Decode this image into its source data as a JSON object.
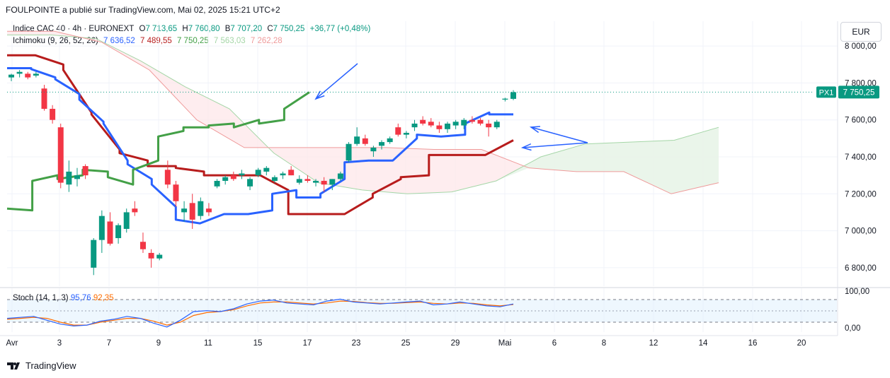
{
  "header": {
    "publisher_line": "FOULPOINTE a publié sur TradingView.com, Mai 02, 2025 15:21 UTC+2"
  },
  "legend": {
    "symbol": "Indice CAC 40 · 4h · EURONEXT",
    "o_label": "O",
    "o_value": "7 713,65",
    "h_label": "H",
    "h_value": "7 760,80",
    "b_label": "B",
    "b_value": "7 707,20",
    "c_label": "C",
    "c_value": "7 750,25",
    "change": "+36,77 (+0,48%)",
    "ichimoku_label": "Ichimoku (9, 26, 52, 26)",
    "ichimoku_values": [
      "7 636,52",
      "7 489,55",
      "7 750,25",
      "7 563,03",
      "7 262,28"
    ]
  },
  "stoch": {
    "label": "Stoch (14, 1, 3)",
    "k": "95,76",
    "d": "92,35"
  },
  "currency_button": "EUR",
  "price_tag": {
    "label": "PX1",
    "value": "7 750,25"
  },
  "price_axis": [
    "8 000,00",
    "7 800,00",
    "7 600,00",
    "7 400,00",
    "7 200,00",
    "7 000,00",
    "6 800,00"
  ],
  "stoch_axis": [
    "100,00",
    "0,00"
  ],
  "time_axis": [
    "Avr",
    "3",
    "7",
    "9",
    "11",
    "15",
    "17",
    "23",
    "25",
    "29",
    "Mai",
    "6",
    "8",
    "12",
    "14",
    "16",
    "20"
  ],
  "brand": "TradingView",
  "colors": {
    "up": "#089981",
    "down": "#f23645",
    "conversion": "#2962ff",
    "base": "#b71c1c",
    "lagging": "#43a047",
    "span_a": "#a5d6a7",
    "span_b": "#ef9a9a",
    "stoch_k": "#2962ff",
    "stoch_d": "#ff6d00"
  },
  "chart_data": {
    "type": "candlestick",
    "title": "Indice CAC 40 · 4h · EURONEXT",
    "ylim": [
      6700,
      8100
    ],
    "candles": [
      {
        "o": 7830,
        "h": 7850,
        "l": 7810,
        "c": 7845
      },
      {
        "o": 7850,
        "h": 7870,
        "l": 7830,
        "c": 7860
      },
      {
        "o": 7850,
        "h": 7860,
        "l": 7820,
        "c": 7830
      },
      {
        "o": 7840,
        "h": 7860,
        "l": 7830,
        "c": 7850
      },
      {
        "o": 7770,
        "h": 7790,
        "l": 7650,
        "c": 7660
      },
      {
        "o": 7660,
        "h": 7680,
        "l": 7580,
        "c": 7600
      },
      {
        "o": 7560,
        "h": 7580,
        "l": 7230,
        "c": 7260
      },
      {
        "o": 7250,
        "h": 7380,
        "l": 7210,
        "c": 7320
      },
      {
        "o": 7280,
        "h": 7340,
        "l": 7240,
        "c": 7300
      },
      {
        "o": 7350,
        "h": 7360,
        "l": 7280,
        "c": 7300
      },
      {
        "o": 6800,
        "h": 6960,
        "l": 6760,
        "c": 6950
      },
      {
        "o": 6950,
        "h": 7110,
        "l": 6880,
        "c": 7080
      },
      {
        "o": 7050,
        "h": 7100,
        "l": 6920,
        "c": 6930
      },
      {
        "o": 6960,
        "h": 7040,
        "l": 6930,
        "c": 7030
      },
      {
        "o": 7010,
        "h": 7120,
        "l": 6990,
        "c": 7100
      },
      {
        "o": 7120,
        "h": 7160,
        "l": 7080,
        "c": 7100
      },
      {
        "o": 6940,
        "h": 6990,
        "l": 6880,
        "c": 6900
      },
      {
        "o": 6880,
        "h": 6900,
        "l": 6800,
        "c": 6850
      },
      {
        "o": 6850,
        "h": 6880,
        "l": 6840,
        "c": 6870
      },
      {
        "o": 7330,
        "h": 7380,
        "l": 7230,
        "c": 7250
      },
      {
        "o": 7250,
        "h": 7270,
        "l": 7130,
        "c": 7160
      },
      {
        "o": 7100,
        "h": 7160,
        "l": 7050,
        "c": 7120
      },
      {
        "o": 7150,
        "h": 7200,
        "l": 7010,
        "c": 7060
      },
      {
        "o": 7080,
        "h": 7180,
        "l": 7060,
        "c": 7160
      },
      {
        "o": 7120,
        "h": 7150,
        "l": 7080,
        "c": 7100
      },
      {
        "o": 7240,
        "h": 7280,
        "l": 7230,
        "c": 7270
      },
      {
        "o": 7270,
        "h": 7300,
        "l": 7250,
        "c": 7290
      },
      {
        "o": 7300,
        "h": 7320,
        "l": 7270,
        "c": 7280
      },
      {
        "o": 7300,
        "h": 7330,
        "l": 7280,
        "c": 7310
      },
      {
        "o": 7240,
        "h": 7290,
        "l": 7220,
        "c": 7280
      },
      {
        "o": 7300,
        "h": 7340,
        "l": 7290,
        "c": 7330
      },
      {
        "o": 7320,
        "h": 7350,
        "l": 7300,
        "c": 7340
      },
      {
        "o": 7270,
        "h": 7300,
        "l": 7260,
        "c": 7290
      },
      {
        "o": 7300,
        "h": 7320,
        "l": 7280,
        "c": 7310
      },
      {
        "o": 7330,
        "h": 7350,
        "l": 7300,
        "c": 7300
      },
      {
        "o": 7260,
        "h": 7300,
        "l": 7250,
        "c": 7280
      },
      {
        "o": 7280,
        "h": 7300,
        "l": 7260,
        "c": 7270
      },
      {
        "o": 7260,
        "h": 7280,
        "l": 7240,
        "c": 7270
      },
      {
        "o": 7270,
        "h": 7290,
        "l": 7210,
        "c": 7250
      },
      {
        "o": 7250,
        "h": 7280,
        "l": 7220,
        "c": 7280
      },
      {
        "o": 7280,
        "h": 7320,
        "l": 7270,
        "c": 7310
      },
      {
        "o": 7380,
        "h": 7480,
        "l": 7370,
        "c": 7470
      },
      {
        "o": 7470,
        "h": 7560,
        "l": 7460,
        "c": 7510
      },
      {
        "o": 7500,
        "h": 7520,
        "l": 7460,
        "c": 7470
      },
      {
        "o": 7430,
        "h": 7460,
        "l": 7400,
        "c": 7450
      },
      {
        "o": 7460,
        "h": 7490,
        "l": 7440,
        "c": 7480
      },
      {
        "o": 7480,
        "h": 7510,
        "l": 7470,
        "c": 7500
      },
      {
        "o": 7560,
        "h": 7580,
        "l": 7510,
        "c": 7520
      },
      {
        "o": 7520,
        "h": 7540,
        "l": 7500,
        "c": 7530
      },
      {
        "o": 7560,
        "h": 7600,
        "l": 7540,
        "c": 7580
      },
      {
        "o": 7600,
        "h": 7620,
        "l": 7570,
        "c": 7580
      },
      {
        "o": 7590,
        "h": 7610,
        "l": 7560,
        "c": 7570
      },
      {
        "o": 7570,
        "h": 7590,
        "l": 7530,
        "c": 7550
      },
      {
        "o": 7550,
        "h": 7590,
        "l": 7530,
        "c": 7580
      },
      {
        "o": 7570,
        "h": 7600,
        "l": 7550,
        "c": 7590
      },
      {
        "o": 7570,
        "h": 7610,
        "l": 7550,
        "c": 7600
      },
      {
        "o": 7600,
        "h": 7620,
        "l": 7580,
        "c": 7590
      },
      {
        "o": 7600,
        "h": 7610,
        "l": 7570,
        "c": 7580
      },
      {
        "o": 7580,
        "h": 7600,
        "l": 7510,
        "c": 7560
      },
      {
        "o": 7560,
        "h": 7600,
        "l": 7550,
        "c": 7590
      },
      {
        "o": 7710,
        "h": 7720,
        "l": 7700,
        "c": 7715
      },
      {
        "o": 7714,
        "h": 7761,
        "l": 7707,
        "c": 7750
      }
    ],
    "ichimoku": {
      "conversion": [
        [
          7880,
          7880
        ],
        [
          7875,
          7830
        ],
        [
          7820,
          7740
        ],
        [
          7710,
          7590
        ],
        [
          7580,
          7380
        ],
        [
          7360,
          7280
        ],
        [
          7250,
          7130
        ],
        [
          7060,
          7040
        ],
        [
          7040,
          7090
        ],
        [
          7090,
          7090
        ],
        [
          7090,
          7110
        ],
        [
          7200,
          7220
        ],
        [
          7180,
          7180
        ],
        [
          7200,
          7280
        ],
        [
          7370,
          7380
        ],
        [
          7380,
          7380
        ],
        [
          7380,
          7500
        ],
        [
          7520,
          7510
        ],
        [
          7510,
          7520
        ],
        [
          7580,
          7640
        ],
        [
          7630,
          7630
        ]
      ],
      "base": [
        [
          7950,
          7950
        ],
        [
          7950,
          7900
        ],
        [
          7870,
          7640
        ],
        [
          7630,
          7440
        ],
        [
          7420,
          7380
        ],
        [
          7350,
          7350
        ],
        [
          7340,
          7320
        ],
        [
          7300,
          7300
        ],
        [
          7300,
          7300
        ],
        [
          7300,
          7220
        ],
        [
          7090,
          7090
        ],
        [
          7090,
          7090
        ],
        [
          7090,
          7180
        ],
        [
          7200,
          7280
        ],
        [
          7290,
          7300
        ],
        [
          7410,
          7410
        ],
        [
          7410,
          7410
        ],
        [
          7410,
          7490
        ]
      ],
      "lagging": [
        [
          7120,
          7110
        ],
        [
          7270,
          7300
        ],
        [
          7280,
          7300
        ],
        [
          7330,
          7320
        ],
        [
          7290,
          7250
        ],
        [
          7330,
          7380
        ],
        [
          7510,
          7540
        ],
        [
          7560,
          7560
        ],
        [
          7570,
          7580
        ],
        [
          7560,
          7600
        ],
        [
          7580,
          7600
        ],
        [
          7660,
          7750
        ]
      ],
      "span_a_values": [
        "8060",
        "8060",
        "8040",
        "7920",
        "7780",
        "7660",
        "7420",
        "7260",
        "7220",
        "7200",
        "7210",
        "7270",
        "7400",
        "7470",
        "7480",
        "7490",
        "7560"
      ],
      "span_b_values": [
        "8080",
        "8080",
        "8020",
        "7870",
        "7600",
        "7450",
        "7450",
        "7450",
        "7450",
        "7440",
        "7440",
        "7340",
        "7320",
        "7320",
        "7200",
        "7260"
      ]
    },
    "stochastic": {
      "k_last": 95.76,
      "d_last": 92.35,
      "ylim": [
        0,
        100
      ]
    },
    "annotations": [
      "arrow pointing to lagging span peak near 17",
      "arrow pointing to conversion line near Mai",
      "arrow pointing to base line near Mai"
    ]
  }
}
